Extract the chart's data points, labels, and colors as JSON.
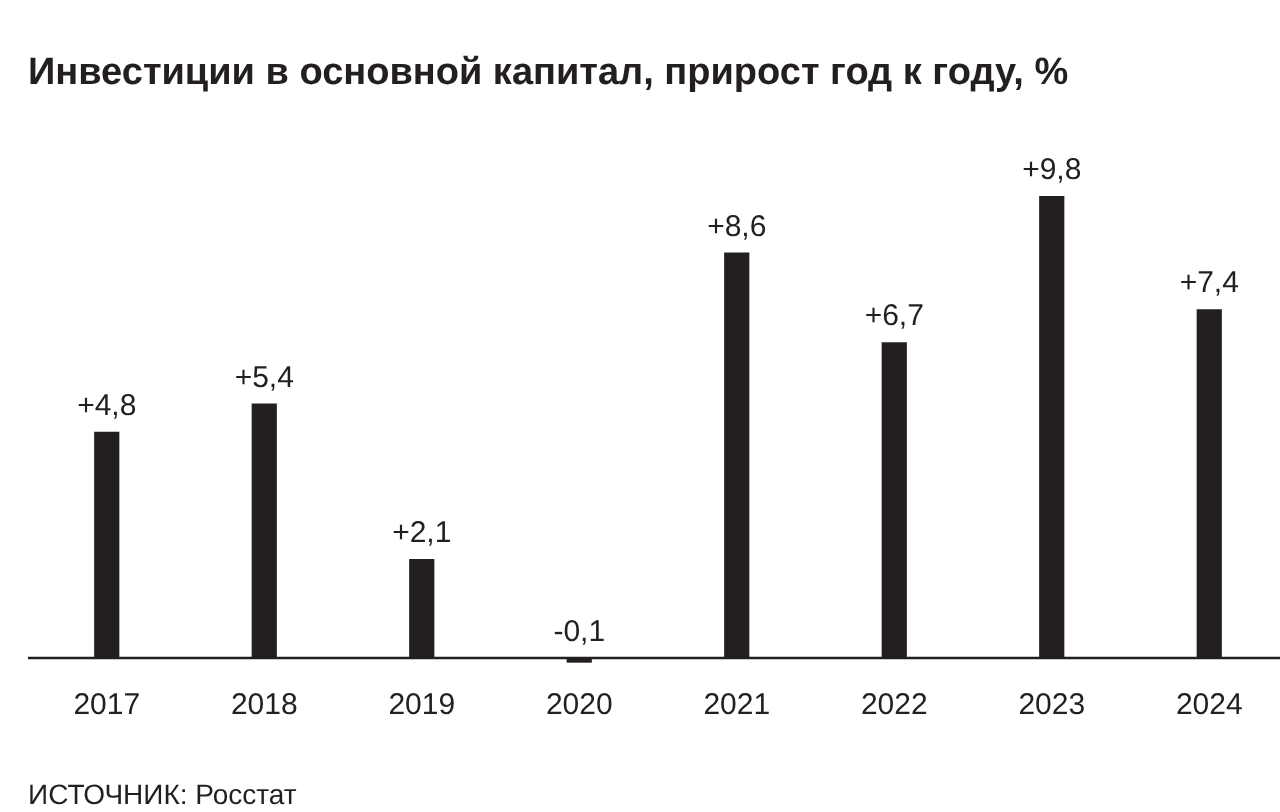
{
  "chart_data": {
    "type": "bar",
    "title": "Инвестиции в основной капитал, прирост год к году, %",
    "categories": [
      "2017",
      "2018",
      "2019",
      "2020",
      "2021",
      "2022",
      "2023",
      "2024"
    ],
    "values": [
      4.8,
      5.4,
      2.1,
      -0.1,
      8.6,
      6.7,
      9.8,
      7.4
    ],
    "value_labels": [
      "+4,8",
      "+5,4",
      "+2,1",
      "-0,1",
      "+8,6",
      "+6,7",
      "+9,8",
      "+7,4"
    ],
    "color": "#231f20",
    "tick_labels": "x",
    "grid": false,
    "legend": false,
    "annotations": [
      "ИСТОЧНИК: Росстат"
    ]
  }
}
